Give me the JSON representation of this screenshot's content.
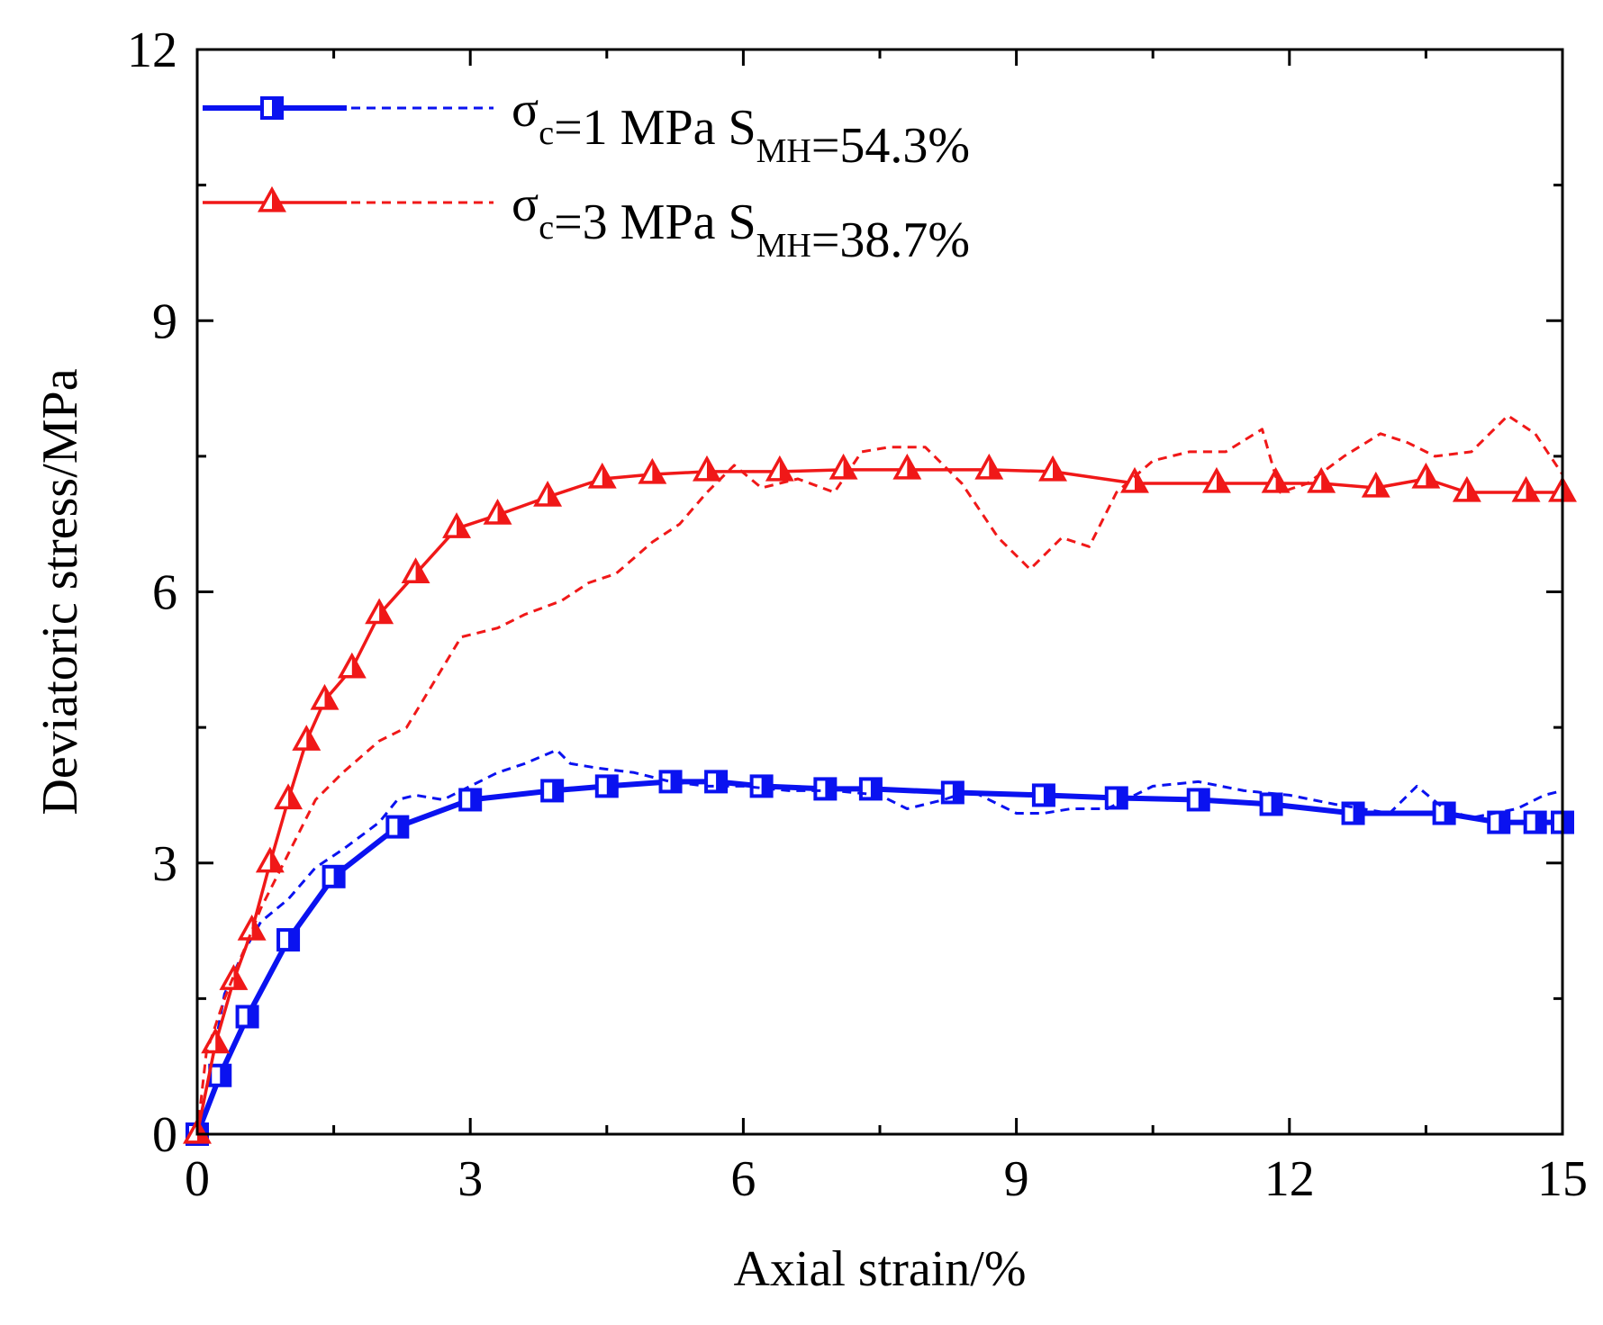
{
  "chart_data": {
    "type": "line",
    "title": "",
    "xlabel": "Axial strain/%",
    "ylabel": "Deviatoric stress/MPa",
    "xlim": [
      0,
      15
    ],
    "ylim": [
      0,
      12
    ],
    "xticks": [
      0,
      3,
      6,
      9,
      12,
      15
    ],
    "yticks": [
      0,
      3,
      6,
      9,
      12
    ],
    "xtick_labels": [
      "0",
      "3",
      "6",
      "9",
      "12",
      "15"
    ],
    "ytick_labels": [
      "0",
      "3",
      "6",
      "9",
      "12"
    ],
    "legend_position": "top-left",
    "series": [
      {
        "id": "s1",
        "legend": {
          "sigma": "σ",
          "sigma_sub": "c",
          "eq1": "=1 MPa S",
          "s_sub": "MH",
          "eq2": "=54.3%"
        },
        "color": "#0a12f0",
        "marker": "square",
        "style": "solid",
        "x": [
          0,
          0.25,
          0.55,
          1.0,
          1.5,
          2.2,
          3.0,
          3.9,
          4.5,
          5.2,
          5.7,
          6.2,
          6.9,
          7.4,
          8.3,
          9.3,
          10.1,
          11.0,
          11.8,
          12.7,
          13.7,
          14.3,
          14.7,
          15.0
        ],
        "y": [
          0,
          0.65,
          1.3,
          2.15,
          2.85,
          3.4,
          3.7,
          3.8,
          3.85,
          3.9,
          3.9,
          3.85,
          3.82,
          3.82,
          3.78,
          3.75,
          3.72,
          3.7,
          3.65,
          3.55,
          3.55,
          3.45,
          3.45,
          3.45
        ]
      },
      {
        "id": "s1-measured",
        "color": "#0a12f0",
        "style": "dashed",
        "x": [
          0,
          0.1,
          0.2,
          0.3,
          0.5,
          0.7,
          1.0,
          1.3,
          1.6,
          2.0,
          2.2,
          2.4,
          2.7,
          3.0,
          3.3,
          3.6,
          3.95,
          4.1,
          4.4,
          4.8,
          5.2,
          5.6,
          6.0,
          6.5,
          7.0,
          7.5,
          7.8,
          8.2,
          8.5,
          9.0,
          9.3,
          9.6,
          10.0,
          10.5,
          11.0,
          11.5,
          12.0,
          12.5,
          12.8,
          13.1,
          13.4,
          13.7,
          14.0,
          14.5,
          14.8,
          15.0
        ],
        "y": [
          0,
          0.5,
          1.0,
          1.55,
          2.0,
          2.35,
          2.6,
          2.95,
          3.15,
          3.45,
          3.7,
          3.75,
          3.7,
          3.85,
          4.0,
          4.1,
          4.25,
          4.1,
          4.05,
          4.0,
          3.9,
          3.85,
          3.85,
          3.8,
          3.8,
          3.75,
          3.6,
          3.7,
          3.8,
          3.55,
          3.55,
          3.6,
          3.6,
          3.85,
          3.9,
          3.8,
          3.75,
          3.65,
          3.6,
          3.55,
          3.85,
          3.6,
          3.5,
          3.6,
          3.75,
          3.8
        ]
      },
      {
        "id": "s2",
        "legend": {
          "sigma": "σ",
          "sigma_sub": "c",
          "eq1": "=3 MPa S",
          "s_sub": "MH",
          "eq2": "=38.7%"
        },
        "color": "#f01818",
        "marker": "triangle",
        "style": "solid",
        "x": [
          0,
          0.2,
          0.4,
          0.6,
          0.8,
          1.0,
          1.2,
          1.4,
          1.7,
          2.0,
          2.4,
          2.85,
          3.3,
          3.85,
          4.45,
          5.0,
          5.6,
          6.4,
          7.1,
          7.8,
          8.7,
          9.4,
          10.3,
          11.2,
          11.85,
          12.35,
          12.95,
          13.5,
          13.95,
          14.6,
          15.0
        ],
        "y": [
          0,
          1.0,
          1.7,
          2.25,
          3.0,
          3.7,
          4.35,
          4.8,
          5.15,
          5.75,
          6.2,
          6.7,
          6.85,
          7.05,
          7.25,
          7.3,
          7.33,
          7.33,
          7.35,
          7.35,
          7.35,
          7.33,
          7.2,
          7.2,
          7.2,
          7.2,
          7.15,
          7.25,
          7.1,
          7.1,
          7.1
        ]
      },
      {
        "id": "s2-measured",
        "color": "#f01818",
        "style": "dashed",
        "x": [
          0,
          0.1,
          0.3,
          0.5,
          0.7,
          1.0,
          1.3,
          1.6,
          2.0,
          2.3,
          2.6,
          2.9,
          3.3,
          3.6,
          4.0,
          4.3,
          4.6,
          5.0,
          5.3,
          5.6,
          5.9,
          6.2,
          6.6,
          7.0,
          7.3,
          7.6,
          8.0,
          8.4,
          8.8,
          9.15,
          9.5,
          9.8,
          10.1,
          10.5,
          10.9,
          11.3,
          11.7,
          11.9,
          12.2,
          12.6,
          13.0,
          13.3,
          13.6,
          14.0,
          14.4,
          14.7,
          15.0
        ],
        "y": [
          0,
          0.9,
          1.5,
          2.0,
          2.5,
          3.1,
          3.7,
          4.0,
          4.35,
          4.5,
          5.0,
          5.5,
          5.6,
          5.75,
          5.9,
          6.1,
          6.2,
          6.55,
          6.75,
          7.1,
          7.4,
          7.15,
          7.25,
          7.1,
          7.55,
          7.6,
          7.6,
          7.2,
          6.6,
          6.25,
          6.6,
          6.5,
          7.1,
          7.45,
          7.55,
          7.55,
          7.8,
          7.1,
          7.2,
          7.5,
          7.75,
          7.65,
          7.5,
          7.55,
          7.95,
          7.75,
          7.3
        ]
      }
    ]
  }
}
